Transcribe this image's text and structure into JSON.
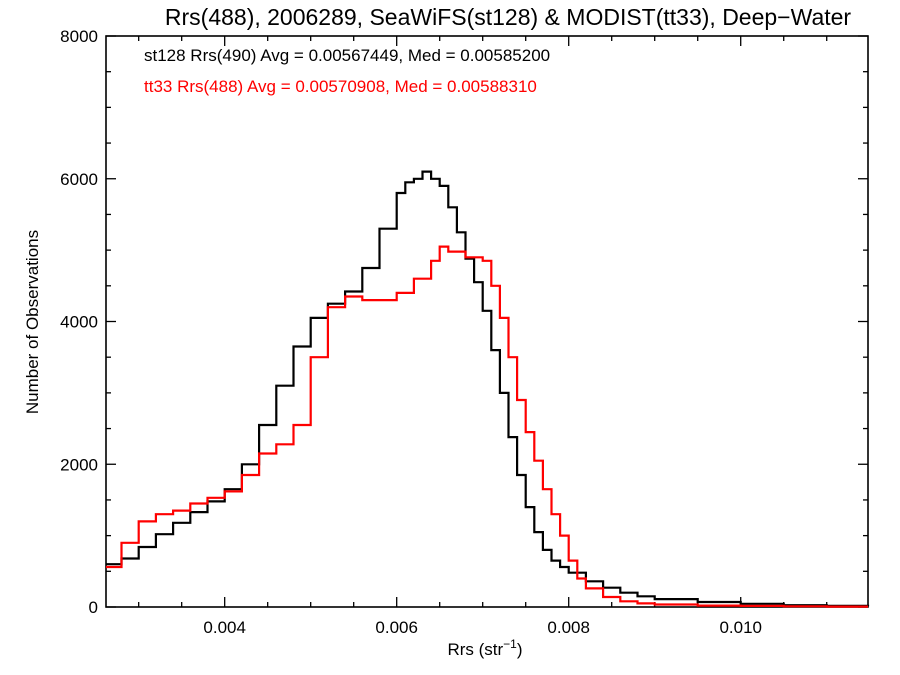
{
  "chart_data": {
    "type": "line",
    "title": "Rrs(488), 2006289, SeaWiFS(st128) & MODIST(tt33), Deep−Water",
    "xlabel": "Rrs (str",
    "xlabel_sup": "−1",
    "xlabel_close": ")",
    "ylabel": "Number of Observations",
    "xlim": [
      0.00262,
      0.01148
    ],
    "ylim": [
      0,
      8000
    ],
    "x_ticks": [
      0.004,
      0.006,
      0.008,
      0.01
    ],
    "x_tick_labels": [
      "0.004",
      "0.006",
      "0.008",
      "0.010"
    ],
    "y_ticks": [
      0,
      2000,
      4000,
      6000,
      8000
    ],
    "y_tick_labels": [
      "0",
      "2000",
      "4000",
      "6000",
      "8000"
    ],
    "annotations": [
      {
        "text": "st128 Rrs(490) Avg = 0.00567449, Med = 0.00585200",
        "color": "#000000"
      },
      {
        "text": "tt33 Rrs(488) Avg = 0.00570908, Med = 0.00588310",
        "color": "#ff0000"
      }
    ],
    "series": [
      {
        "color": "#000000",
        "x": [
          0.00262,
          0.0028,
          0.003,
          0.0032,
          0.0034,
          0.0036,
          0.0038,
          0.004,
          0.0042,
          0.0044,
          0.0046,
          0.0048,
          0.005,
          0.0052,
          0.0054,
          0.0056,
          0.0058,
          0.006,
          0.0061,
          0.0062,
          0.0063,
          0.0064,
          0.0065,
          0.0066,
          0.0067,
          0.0068,
          0.0069,
          0.007,
          0.0071,
          0.0072,
          0.0073,
          0.0074,
          0.0075,
          0.0076,
          0.0077,
          0.0078,
          0.0079,
          0.008,
          0.0082,
          0.0084,
          0.0086,
          0.0088,
          0.009,
          0.0095,
          0.01,
          0.0105,
          0.011,
          0.01148
        ],
        "y": [
          600,
          680,
          840,
          1020,
          1180,
          1330,
          1480,
          1650,
          2000,
          2550,
          3100,
          3650,
          4050,
          4250,
          4420,
          4750,
          5300,
          5800,
          5950,
          6000,
          6100,
          6000,
          5900,
          5600,
          5250,
          4880,
          4550,
          4150,
          3600,
          3000,
          2380,
          1850,
          1400,
          1050,
          800,
          650,
          560,
          480,
          360,
          270,
          200,
          150,
          110,
          70,
          45,
          25,
          15,
          10
        ]
      },
      {
        "color": "#ff0000",
        "x": [
          0.00262,
          0.0028,
          0.003,
          0.0032,
          0.0034,
          0.0036,
          0.0038,
          0.004,
          0.0042,
          0.0044,
          0.0046,
          0.0048,
          0.005,
          0.0052,
          0.0054,
          0.0056,
          0.0058,
          0.006,
          0.0062,
          0.0064,
          0.0065,
          0.0066,
          0.0068,
          0.007,
          0.0071,
          0.0072,
          0.0073,
          0.0074,
          0.0075,
          0.0076,
          0.0077,
          0.0078,
          0.0079,
          0.008,
          0.0081,
          0.0082,
          0.0084,
          0.0086,
          0.0088,
          0.009,
          0.0095,
          0.01,
          0.0105,
          0.011,
          0.01148
        ],
        "y": [
          560,
          900,
          1200,
          1300,
          1350,
          1450,
          1530,
          1620,
          1850,
          2150,
          2280,
          2550,
          3500,
          4200,
          4350,
          4300,
          4300,
          4400,
          4600,
          4850,
          5050,
          4980,
          4900,
          4850,
          4500,
          4050,
          3500,
          2900,
          2450,
          2050,
          1650,
          1300,
          1000,
          650,
          400,
          260,
          140,
          80,
          50,
          35,
          20,
          15,
          10,
          6,
          5
        ]
      }
    ]
  }
}
